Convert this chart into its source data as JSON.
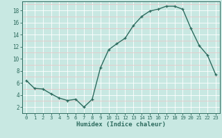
{
  "x": [
    0,
    1,
    2,
    3,
    4,
    5,
    6,
    7,
    8,
    9,
    10,
    11,
    12,
    13,
    14,
    15,
    16,
    17,
    18,
    19,
    20,
    21,
    22,
    23
  ],
  "y": [
    6.4,
    5.1,
    5.0,
    4.2,
    3.5,
    3.1,
    3.3,
    2.0,
    3.3,
    8.5,
    11.5,
    12.5,
    13.4,
    15.5,
    17.0,
    17.9,
    18.2,
    18.7,
    18.7,
    18.2,
    15.0,
    12.2,
    10.6,
    7.4
  ],
  "xlabel": "Humidex (Indice chaleur)",
  "xlim": [
    -0.5,
    23.5
  ],
  "ylim": [
    1.0,
    19.5
  ],
  "yticks": [
    2,
    4,
    6,
    8,
    10,
    12,
    14,
    16,
    18
  ],
  "xticks": [
    0,
    1,
    2,
    3,
    4,
    5,
    6,
    7,
    8,
    9,
    10,
    11,
    12,
    13,
    14,
    15,
    16,
    17,
    18,
    19,
    20,
    21,
    22,
    23
  ],
  "line_color": "#2d6b5e",
  "marker": "+",
  "bg_color": "#c8e8e2",
  "grid_white": "#ffffff",
  "grid_pink": "#e8c8c8"
}
